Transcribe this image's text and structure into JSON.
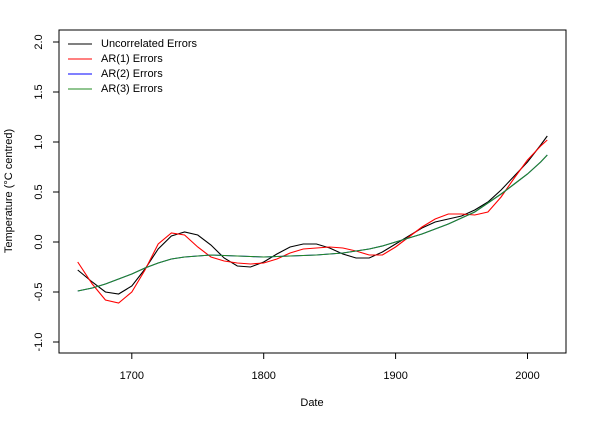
{
  "chart_data": {
    "type": "line",
    "x_label": "Date",
    "y_label": "Temperature (°C centred)",
    "x": [
      1659,
      1670,
      1680,
      1690,
      1700,
      1710,
      1720,
      1730,
      1740,
      1750,
      1760,
      1770,
      1780,
      1790,
      1800,
      1810,
      1820,
      1830,
      1840,
      1850,
      1860,
      1870,
      1880,
      1890,
      1900,
      1910,
      1920,
      1930,
      1940,
      1950,
      1960,
      1970,
      1980,
      1990,
      2000,
      2010,
      2015
    ],
    "series": [
      {
        "name": "Uncorrelated Errors",
        "color": "#000000",
        "values": [
          -0.28,
          -0.4,
          -0.5,
          -0.52,
          -0.44,
          -0.27,
          -0.07,
          0.06,
          0.1,
          0.07,
          -0.03,
          -0.16,
          -0.24,
          -0.25,
          -0.2,
          -0.12,
          -0.05,
          -0.02,
          -0.02,
          -0.06,
          -0.12,
          -0.16,
          -0.16,
          -0.1,
          -0.02,
          0.06,
          0.14,
          0.2,
          0.23,
          0.26,
          0.32,
          0.4,
          0.52,
          0.66,
          0.8,
          0.97,
          1.06
        ]
      },
      {
        "name": "AR(1) Errors",
        "color": "#ff0000",
        "values": [
          -0.2,
          -0.42,
          -0.58,
          -0.61,
          -0.5,
          -0.28,
          -0.02,
          0.09,
          0.07,
          -0.05,
          -0.15,
          -0.19,
          -0.21,
          -0.22,
          -0.21,
          -0.17,
          -0.11,
          -0.07,
          -0.06,
          -0.05,
          -0.06,
          -0.09,
          -0.13,
          -0.13,
          -0.05,
          0.05,
          0.15,
          0.23,
          0.28,
          0.28,
          0.27,
          0.3,
          0.45,
          0.64,
          0.82,
          0.96,
          1.02
        ]
      },
      {
        "name": "AR(2) Errors",
        "color": "#0000ff",
        "values": [
          -0.49,
          -0.46,
          -0.42,
          -0.37,
          -0.32,
          -0.26,
          -0.21,
          -0.17,
          -0.15,
          -0.14,
          -0.13,
          -0.135,
          -0.14,
          -0.145,
          -0.15,
          -0.145,
          -0.14,
          -0.135,
          -0.13,
          -0.12,
          -0.11,
          -0.09,
          -0.07,
          -0.04,
          0.0,
          0.04,
          0.08,
          0.13,
          0.18,
          0.24,
          0.3,
          0.39,
          0.48,
          0.58,
          0.68,
          0.8,
          0.87
        ]
      },
      {
        "name": "AR(3) Errors",
        "color": "#228b22",
        "values": [
          -0.49,
          -0.46,
          -0.42,
          -0.37,
          -0.32,
          -0.26,
          -0.21,
          -0.17,
          -0.15,
          -0.14,
          -0.13,
          -0.135,
          -0.14,
          -0.145,
          -0.15,
          -0.145,
          -0.14,
          -0.135,
          -0.13,
          -0.12,
          -0.11,
          -0.09,
          -0.07,
          -0.04,
          0.0,
          0.04,
          0.08,
          0.13,
          0.18,
          0.24,
          0.3,
          0.39,
          0.48,
          0.58,
          0.68,
          0.8,
          0.87
        ]
      }
    ],
    "xlim": [
      1644.8,
      2029.2
    ],
    "ylim": [
      -1.11,
      2.12
    ],
    "xticks": [
      1700,
      1800,
      1900,
      2000
    ],
    "yticks": [
      {
        "value": -1,
        "label": "-1.0"
      },
      -0.5,
      {
        "value": 0,
        "label": "0.0"
      },
      0.5,
      {
        "value": 1,
        "label": "1.0"
      },
      1.5,
      {
        "value": 2,
        "label": "2.0"
      }
    ],
    "legend": "top-left"
  }
}
